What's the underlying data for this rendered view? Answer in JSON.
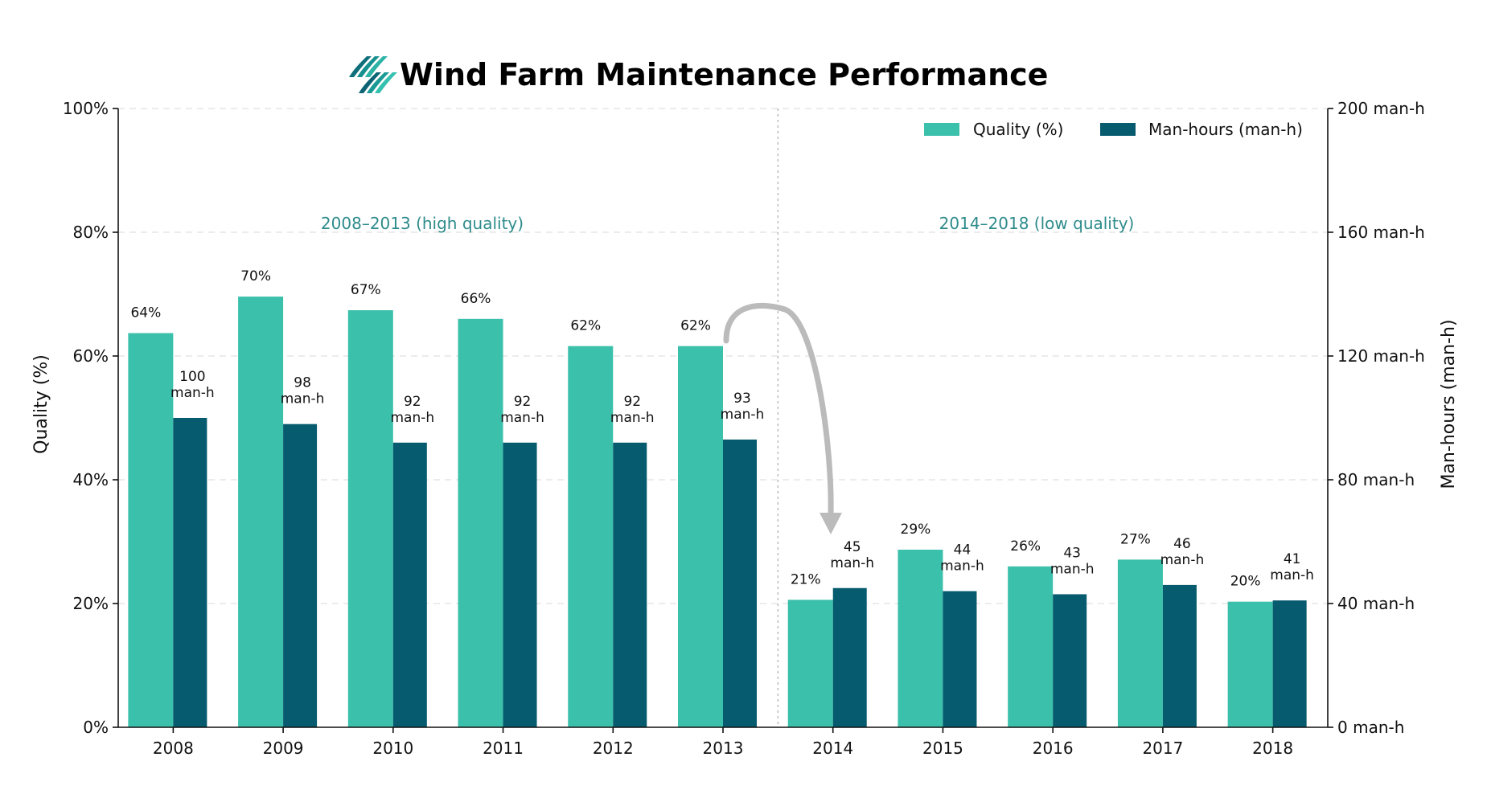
{
  "title": "Wind Farm Maintenance Performance",
  "colors": {
    "quality": "#3BC0AB",
    "manhours": "#075B6E",
    "period_text": "#2E8B8B",
    "arrow": "#BBBBBB",
    "grid": "#E5E5E5"
  },
  "icon": "wind-waves-logo",
  "chart_data": {
    "type": "bar",
    "categories": [
      "2008",
      "2009",
      "2010",
      "2011",
      "2012",
      "2013",
      "2014",
      "2015",
      "2016",
      "2017",
      "2018"
    ],
    "series": [
      {
        "name": "Quality (%)",
        "axis": "left",
        "values": [
          63.7,
          69.6,
          67.4,
          66.0,
          61.6,
          61.6,
          20.6,
          28.7,
          26.0,
          27.1,
          20.3
        ],
        "labels": [
          "64%",
          "70%",
          "67%",
          "66%",
          "62%",
          "62%",
          "21%",
          "29%",
          "26%",
          "27%",
          "20%"
        ]
      },
      {
        "name": "Man-hours (man-h)",
        "axis": "right",
        "values": [
          100,
          98,
          92,
          92,
          92,
          93,
          45,
          44,
          43,
          46,
          41
        ],
        "labels": [
          "100",
          "98",
          "92",
          "92",
          "92",
          "93",
          "45",
          "44",
          "43",
          "46",
          "41"
        ],
        "label_unit": "man-h"
      }
    ],
    "left_axis": {
      "label": "Quality (%)",
      "range": [
        0,
        100
      ],
      "ticks": [
        0,
        20,
        40,
        60,
        80,
        100
      ],
      "tick_labels": [
        "0%",
        "20%",
        "40%",
        "60%",
        "80%",
        "100%"
      ]
    },
    "right_axis": {
      "label": "Man-hours (man-h)",
      "range": [
        0,
        200
      ],
      "ticks": [
        0,
        40,
        80,
        120,
        160,
        200
      ],
      "tick_labels": [
        "0 man-h",
        "40 man-h",
        "80 man-h",
        "120 man-h",
        "160 man-h",
        "200 man-h"
      ]
    },
    "period_labels": [
      "2008–2013 (high quality)",
      "2014–2018 (low quality)"
    ],
    "grid": "horizontal-dashed",
    "legend_position": "top-right"
  }
}
